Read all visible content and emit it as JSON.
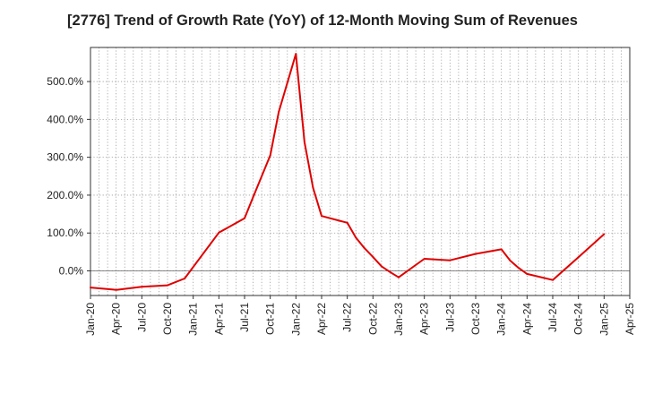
{
  "chart_data": {
    "type": "line",
    "title": "[2776]  Trend of Growth Rate (YoY) of 12-Month Moving Sum of Revenues",
    "xlabel": "",
    "ylabel": "",
    "x_ticks": [
      "Jan-20",
      "Apr-20",
      "Jul-20",
      "Oct-20",
      "Jan-21",
      "Apr-21",
      "Jul-21",
      "Oct-21",
      "Jan-22",
      "Apr-22",
      "Jul-22",
      "Oct-22",
      "Jan-23",
      "Apr-23",
      "Jul-23",
      "Oct-23",
      "Jan-24",
      "Apr-24",
      "Jul-24",
      "Oct-24",
      "Jan-25",
      "Apr-25"
    ],
    "y_ticks": [
      "0.0%",
      "100.0%",
      "200.0%",
      "300.0%",
      "400.0%",
      "500.0%"
    ],
    "y_tick_values": [
      0,
      100,
      200,
      300,
      400,
      500
    ],
    "ylim": [
      -65,
      590
    ],
    "grid": true,
    "line_color": "#e00000",
    "series": [
      {
        "x": [
          "Jan-20",
          "Apr-20",
          "Jul-20",
          "Oct-20",
          "Dec-20",
          "Apr-21",
          "Jul-21",
          "Aug-21",
          "Oct-21",
          "Nov-21",
          "Jan-22",
          "Feb-22",
          "Mar-22",
          "Apr-22",
          "Jul-22",
          "Aug-22",
          "Sep-22",
          "Oct-22",
          "Nov-22",
          "Dec-22",
          "Jan-23",
          "Apr-23",
          "Jul-23",
          "Oct-23",
          "Jan-24",
          "Feb-24",
          "Mar-24",
          "Apr-24",
          "Jul-24",
          "Oct-24",
          "Jan-25"
        ],
        "values": [
          -44,
          -50,
          -42,
          -38,
          -20,
          101,
          139,
          195,
          305,
          420,
          573,
          340,
          220,
          145,
          127,
          88,
          60,
          37,
          12,
          -3,
          -17,
          32,
          28,
          45,
          57,
          28,
          8,
          -8,
          -24,
          36,
          97
        ]
      }
    ]
  }
}
